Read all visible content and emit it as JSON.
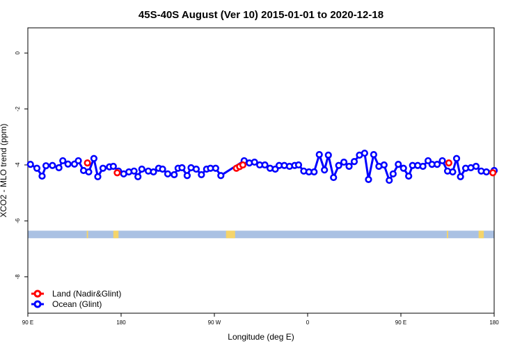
{
  "chart_data": {
    "type": "line",
    "title": "45S-40S August (Ver 10)   2015-01-01 to 2020-12-18",
    "xlabel": "Longitude (deg E)",
    "ylabel": "XCO2 - MLO trend (ppm)",
    "xlim": [
      90,
      450
    ],
    "ylim": [
      -9.3,
      0.9
    ],
    "x_ticks": [
      {
        "value": 90,
        "label": "90 E"
      },
      {
        "value": 162,
        "label": "180"
      },
      {
        "value": 234,
        "label": "90 W"
      },
      {
        "value": 306,
        "label": "0"
      },
      {
        "value": 378,
        "label": "90 E"
      },
      {
        "value": 450,
        "label": "180"
      }
    ],
    "y_ticks": [
      {
        "value": 0,
        "label": "0"
      },
      {
        "value": -2,
        "label": "-2"
      },
      {
        "value": -4,
        "label": "-4"
      },
      {
        "value": -6,
        "label": "-6"
      },
      {
        "value": -8,
        "label": "-8"
      }
    ],
    "grid": false,
    "legend_position": "bottom-left",
    "series": [
      {
        "name": "Land (Nadir&Glint)",
        "color": "#ff0000",
        "points": [
          {
            "x": 136,
            "y": -3.93
          },
          {
            "x": 159,
            "y": -4.28
          },
          {
            "x": 251,
            "y": -4.12
          },
          {
            "x": 253.5,
            "y": -4.06
          },
          {
            "x": 256,
            "y": -4.0
          },
          {
            "x": 415,
            "y": -3.93
          },
          {
            "x": 449,
            "y": -4.28
          }
        ]
      },
      {
        "name": "Ocean (Glint)",
        "color": "#0000ff",
        "points": [
          {
            "x": 92,
            "y": -3.98
          },
          {
            "x": 97,
            "y": -4.12
          },
          {
            "x": 101,
            "y": -4.4
          },
          {
            "x": 104,
            "y": -4.03
          },
          {
            "x": 109,
            "y": -4.02
          },
          {
            "x": 114,
            "y": -4.1
          },
          {
            "x": 117,
            "y": -3.85
          },
          {
            "x": 121,
            "y": -3.97
          },
          {
            "x": 126,
            "y": -3.97
          },
          {
            "x": 129,
            "y": -3.85
          },
          {
            "x": 133,
            "y": -4.2
          },
          {
            "x": 137,
            "y": -4.25
          },
          {
            "x": 141,
            "y": -3.77
          },
          {
            "x": 144,
            "y": -4.42
          },
          {
            "x": 148,
            "y": -4.12
          },
          {
            "x": 153,
            "y": -4.07
          },
          {
            "x": 156,
            "y": -4.05
          },
          {
            "x": 160,
            "y": -4.22
          },
          {
            "x": 164,
            "y": -4.32
          },
          {
            "x": 168,
            "y": -4.25
          },
          {
            "x": 172,
            "y": -4.22
          },
          {
            "x": 175,
            "y": -4.42
          },
          {
            "x": 178,
            "y": -4.15
          },
          {
            "x": 183,
            "y": -4.22
          },
          {
            "x": 187,
            "y": -4.25
          },
          {
            "x": 191,
            "y": -4.12
          },
          {
            "x": 194,
            "y": -4.15
          },
          {
            "x": 198,
            "y": -4.32
          },
          {
            "x": 203,
            "y": -4.35
          },
          {
            "x": 206,
            "y": -4.12
          },
          {
            "x": 209,
            "y": -4.1
          },
          {
            "x": 213,
            "y": -4.38
          },
          {
            "x": 216,
            "y": -4.1
          },
          {
            "x": 220,
            "y": -4.15
          },
          {
            "x": 224,
            "y": -4.35
          },
          {
            "x": 228,
            "y": -4.15
          },
          {
            "x": 231,
            "y": -4.12
          },
          {
            "x": 235,
            "y": -4.12
          },
          {
            "x": 239,
            "y": -4.38
          },
          {
            "x": 257,
            "y": -3.85
          },
          {
            "x": 261,
            "y": -3.93
          },
          {
            "x": 265,
            "y": -3.9
          },
          {
            "x": 269,
            "y": -4.0
          },
          {
            "x": 273,
            "y": -4.0
          },
          {
            "x": 277,
            "y": -4.12
          },
          {
            "x": 281,
            "y": -4.15
          },
          {
            "x": 284,
            "y": -4.02
          },
          {
            "x": 288,
            "y": -4.02
          },
          {
            "x": 292,
            "y": -4.05
          },
          {
            "x": 296,
            "y": -4.02
          },
          {
            "x": 299,
            "y": -4.0
          },
          {
            "x": 303,
            "y": -4.22
          },
          {
            "x": 307,
            "y": -4.25
          },
          {
            "x": 311,
            "y": -4.25
          },
          {
            "x": 315,
            "y": -3.63
          },
          {
            "x": 319,
            "y": -4.18
          },
          {
            "x": 322,
            "y": -3.65
          },
          {
            "x": 326,
            "y": -4.45
          },
          {
            "x": 330,
            "y": -4.02
          },
          {
            "x": 334,
            "y": -3.9
          },
          {
            "x": 338,
            "y": -4.05
          },
          {
            "x": 342,
            "y": -3.88
          },
          {
            "x": 346,
            "y": -3.65
          },
          {
            "x": 350,
            "y": -3.58
          },
          {
            "x": 353,
            "y": -4.52
          },
          {
            "x": 357,
            "y": -3.63
          },
          {
            "x": 361,
            "y": -4.05
          },
          {
            "x": 365,
            "y": -4.0
          },
          {
            "x": 369,
            "y": -4.55
          },
          {
            "x": 372,
            "y": -4.32
          },
          {
            "x": 376,
            "y": -3.98
          },
          {
            "x": 380,
            "y": -4.12
          },
          {
            "x": 384,
            "y": -4.4
          },
          {
            "x": 387,
            "y": -4.02
          },
          {
            "x": 391,
            "y": -4.02
          },
          {
            "x": 395,
            "y": -4.05
          },
          {
            "x": 399,
            "y": -3.85
          },
          {
            "x": 402,
            "y": -3.98
          },
          {
            "x": 406,
            "y": -3.98
          },
          {
            "x": 410,
            "y": -3.85
          },
          {
            "x": 414,
            "y": -4.22
          },
          {
            "x": 418,
            "y": -4.25
          },
          {
            "x": 421,
            "y": -3.77
          },
          {
            "x": 424,
            "y": -4.42
          },
          {
            "x": 428,
            "y": -4.12
          },
          {
            "x": 432,
            "y": -4.1
          },
          {
            "x": 436,
            "y": -4.05
          },
          {
            "x": 440,
            "y": -4.22
          },
          {
            "x": 444,
            "y": -4.25
          },
          {
            "x": 450,
            "y": -4.2
          }
        ]
      }
    ],
    "land_mask_band": {
      "y_range": [
        -6.62,
        -6.35
      ],
      "ocean_color": "#aac1e3",
      "land_color": "#f5d46a",
      "land_x_ranges": [
        [
          135.5,
          136.5
        ],
        [
          156,
          160
        ],
        [
          243,
          250
        ],
        [
          413.5,
          414.5
        ],
        [
          438,
          442
        ]
      ]
    }
  }
}
